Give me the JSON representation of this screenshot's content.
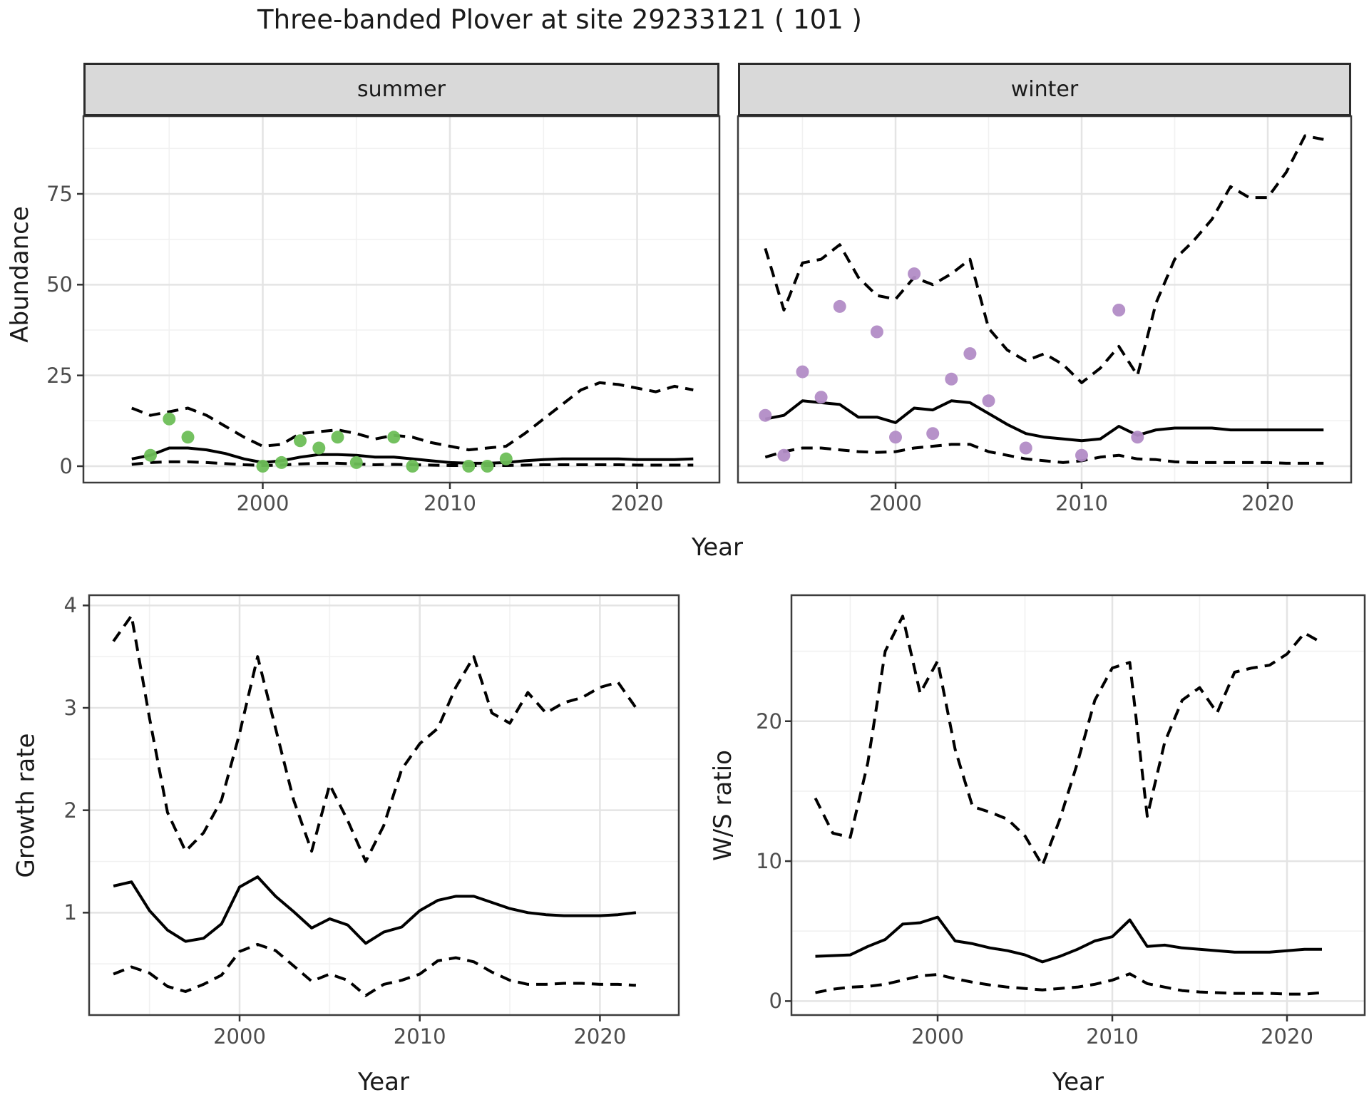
{
  "title": "Three-banded Plover at site 29233121 ( 101 )",
  "colors": {
    "summer_points": "#6dbe57",
    "winter_points": "#b28cc6",
    "line": "#000000",
    "strip_bg": "#d9d9d9",
    "grid_major": "#e4e4e4",
    "grid_minor": "#f1f1f1",
    "panel_border": "#3c3c3c",
    "tick_text": "#4d4d4d"
  },
  "chart_data": [
    {
      "type": "line+scatter",
      "facet": "summer",
      "xlabel": "Year",
      "ylabel": "Abundance",
      "x": [
        1993,
        1994,
        1995,
        1996,
        1997,
        1998,
        1999,
        2000,
        2001,
        2002,
        2003,
        2004,
        2005,
        2006,
        2007,
        2008,
        2009,
        2010,
        2011,
        2012,
        2013,
        2014,
        2015,
        2016,
        2017,
        2018,
        2019,
        2020,
        2021,
        2022,
        2023
      ],
      "series": [
        {
          "name": "median",
          "line": "solid",
          "values": [
            2,
            3,
            5,
            5,
            4.5,
            3.5,
            2,
            1,
            1.5,
            2.5,
            3.2,
            3.2,
            3,
            2.5,
            2.5,
            2,
            1.5,
            1,
            0.8,
            0.8,
            1,
            1.5,
            1.8,
            2,
            2,
            2,
            2,
            1.8,
            1.8,
            1.8,
            2
          ]
        },
        {
          "name": "upper_ci",
          "line": "dashed",
          "values": [
            16,
            14,
            15,
            16,
            14,
            11,
            8,
            5.5,
            6,
            9,
            9.5,
            10,
            9,
            7.5,
            8.5,
            8,
            6.5,
            5.5,
            4.5,
            5,
            5.5,
            9,
            13,
            17,
            21,
            23,
            22.5,
            21.5,
            20.5,
            22,
            21
          ]
        },
        {
          "name": "lower_ci",
          "line": "dashed",
          "values": [
            0.5,
            1,
            1.2,
            1.2,
            1,
            0.7,
            0.4,
            0.2,
            0.3,
            0.6,
            0.8,
            0.8,
            0.6,
            0.4,
            0.5,
            0.4,
            0.3,
            0.2,
            0.2,
            0.2,
            0.2,
            0.3,
            0.4,
            0.4,
            0.4,
            0.4,
            0.4,
            0.3,
            0.3,
            0.3,
            0.3
          ]
        }
      ],
      "points": [
        [
          1994,
          3
        ],
        [
          1995,
          13
        ],
        [
          1996,
          8
        ],
        [
          2000,
          0
        ],
        [
          2001,
          1
        ],
        [
          2002,
          7
        ],
        [
          2003,
          5
        ],
        [
          2004,
          8
        ],
        [
          2005,
          1
        ],
        [
          2007,
          8
        ],
        [
          2008,
          0
        ],
        [
          2011,
          0
        ],
        [
          2012,
          0
        ],
        [
          2013,
          2
        ]
      ],
      "point_color": "#6dbe57",
      "xticks": [
        2000,
        2010,
        2020
      ],
      "yticks": [
        0,
        25,
        50,
        75
      ],
      "xlim": [
        1990.4,
        2024.4
      ],
      "ylim": [
        -4.5,
        96.4
      ]
    },
    {
      "type": "line+scatter",
      "facet": "winter",
      "xlabel": "Year",
      "ylabel": "Abundance",
      "x": [
        1993,
        1994,
        1995,
        1996,
        1997,
        1998,
        1999,
        2000,
        2001,
        2002,
        2003,
        2004,
        2005,
        2006,
        2007,
        2008,
        2009,
        2010,
        2011,
        2012,
        2013,
        2014,
        2015,
        2016,
        2017,
        2018,
        2019,
        2020,
        2021,
        2022,
        2023
      ],
      "series": [
        {
          "name": "median",
          "line": "solid",
          "values": [
            13,
            14,
            18,
            17.5,
            17,
            13.5,
            13.5,
            12,
            16,
            15.5,
            18,
            17.5,
            14.5,
            11.5,
            9,
            8,
            7.5,
            7,
            7.5,
            11,
            8.5,
            10,
            10.5,
            10.5,
            10.5,
            10,
            10,
            10,
            10,
            10,
            10
          ]
        },
        {
          "name": "upper_ci",
          "line": "dashed",
          "values": [
            60,
            43,
            56,
            57,
            61,
            52,
            47,
            46,
            52,
            50,
            53,
            57,
            38,
            32,
            29,
            31,
            28,
            23,
            27,
            33,
            25,
            45,
            57,
            62,
            68,
            77,
            74,
            74,
            81,
            91,
            90
          ]
        },
        {
          "name": "lower_ci",
          "line": "dashed",
          "values": [
            2.5,
            4,
            5,
            5,
            4.5,
            4,
            3.8,
            4,
            5,
            5.5,
            6,
            6,
            4,
            3,
            2,
            1.5,
            1,
            1.5,
            2.5,
            3,
            2,
            1.8,
            1.2,
            1,
            1,
            1,
            1,
            1,
            0.8,
            0.8,
            0.8
          ]
        }
      ],
      "points": [
        [
          1993,
          14
        ],
        [
          1994,
          3
        ],
        [
          1995,
          26
        ],
        [
          1996,
          19
        ],
        [
          1997,
          44
        ],
        [
          1999,
          37
        ],
        [
          2000,
          8
        ],
        [
          2001,
          53
        ],
        [
          2002,
          9
        ],
        [
          2003,
          24
        ],
        [
          2004,
          31
        ],
        [
          2005,
          18
        ],
        [
          2007,
          5
        ],
        [
          2010,
          3
        ],
        [
          2012,
          43
        ],
        [
          2013,
          8
        ]
      ],
      "point_color": "#b28cc6",
      "xticks": [
        2000,
        2010,
        2020
      ],
      "yticks": [
        0,
        25,
        50,
        75
      ],
      "xlim": [
        1991.5,
        2024.5
      ],
      "ylim": [
        -4.5,
        96.4
      ]
    },
    {
      "type": "line",
      "facet": null,
      "xlabel": "Year",
      "ylabel": "Growth rate",
      "x": [
        1993,
        1994,
        1995,
        1996,
        1997,
        1998,
        1999,
        2000,
        2001,
        2002,
        2003,
        2004,
        2005,
        2006,
        2007,
        2008,
        2009,
        2010,
        2011,
        2012,
        2013,
        2014,
        2015,
        2016,
        2017,
        2018,
        2019,
        2020,
        2021,
        2022
      ],
      "series": [
        {
          "name": "median",
          "line": "solid",
          "values": [
            1.26,
            1.3,
            1.02,
            0.83,
            0.72,
            0.75,
            0.89,
            1.25,
            1.35,
            1.16,
            1.01,
            0.85,
            0.94,
            0.88,
            0.7,
            0.81,
            0.86,
            1.02,
            1.12,
            1.16,
            1.16,
            1.1,
            1.04,
            1,
            0.98,
            0.97,
            0.97,
            0.97,
            0.98,
            1
          ]
        },
        {
          "name": "upper_ci",
          "line": "dashed",
          "values": [
            3.65,
            3.9,
            2.9,
            1.98,
            1.6,
            1.78,
            2.1,
            2.75,
            3.5,
            2.8,
            2.1,
            1.6,
            2.25,
            1.9,
            1.5,
            1.85,
            2.4,
            2.65,
            2.8,
            3.2,
            3.5,
            2.95,
            2.85,
            3.15,
            2.95,
            3.05,
            3.1,
            3.2,
            3.25,
            3
          ]
        },
        {
          "name": "lower_ci",
          "line": "dashed",
          "values": [
            0.4,
            0.47,
            0.41,
            0.28,
            0.23,
            0.3,
            0.39,
            0.62,
            0.69,
            0.63,
            0.48,
            0.33,
            0.4,
            0.34,
            0.19,
            0.3,
            0.34,
            0.4,
            0.53,
            0.56,
            0.52,
            0.42,
            0.34,
            0.3,
            0.3,
            0.31,
            0.31,
            0.3,
            0.3,
            0.29
          ]
        }
      ],
      "points": [],
      "point_color": null,
      "xticks": [
        2000,
        2010,
        2020
      ],
      "yticks": [
        1,
        2,
        3,
        4
      ],
      "xlim": [
        1991.6,
        2024.4
      ],
      "ylim": [
        0,
        4.1
      ]
    },
    {
      "type": "line",
      "facet": null,
      "xlabel": "Year",
      "ylabel": "W/S ratio",
      "x": [
        1993,
        1994,
        1995,
        1996,
        1997,
        1998,
        1999,
        2000,
        2001,
        2002,
        2003,
        2004,
        2005,
        2006,
        2007,
        2008,
        2009,
        2010,
        2011,
        2012,
        2013,
        2014,
        2015,
        2016,
        2017,
        2018,
        2019,
        2020,
        2021,
        2022
      ],
      "series": [
        {
          "name": "median",
          "line": "solid",
          "values": [
            3.2,
            3.25,
            3.3,
            3.9,
            4.4,
            5.5,
            5.6,
            6,
            4.3,
            4.1,
            3.8,
            3.6,
            3.3,
            2.8,
            3.2,
            3.7,
            4.3,
            4.6,
            5.8,
            3.9,
            4,
            3.8,
            3.7,
            3.6,
            3.5,
            3.5,
            3.5,
            3.6,
            3.7,
            3.7
          ]
        },
        {
          "name": "upper_ci",
          "line": "dashed",
          "values": [
            14.5,
            12,
            11.7,
            17,
            25,
            27.5,
            22,
            24.3,
            18,
            13.9,
            13.5,
            13,
            11.8,
            9.7,
            13,
            17,
            21.5,
            23.8,
            24.2,
            13.2,
            18.5,
            21.5,
            22.4,
            20.6,
            23.5,
            23.8,
            24,
            24.8,
            26.3,
            25.6
          ]
        },
        {
          "name": "lower_ci",
          "line": "dashed",
          "values": [
            0.6,
            0.85,
            1,
            1.05,
            1.2,
            1.5,
            1.8,
            1.9,
            1.6,
            1.35,
            1.15,
            1,
            0.9,
            0.8,
            0.9,
            1,
            1.2,
            1.5,
            1.95,
            1.25,
            1,
            0.75,
            0.65,
            0.6,
            0.55,
            0.55,
            0.55,
            0.5,
            0.5,
            0.6
          ]
        }
      ],
      "points": [],
      "point_color": null,
      "xticks": [
        2000,
        2010,
        2020
      ],
      "yticks": [
        0,
        10,
        20
      ],
      "xlim": [
        1991.6,
        2024.4
      ],
      "ylim": [
        -1,
        29
      ]
    }
  ]
}
